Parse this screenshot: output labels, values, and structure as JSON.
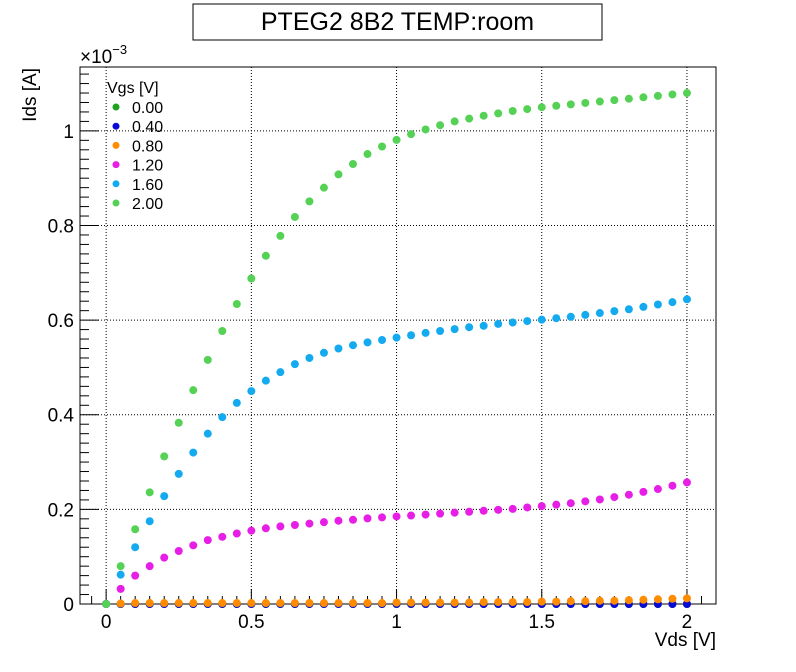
{
  "chart_data": {
    "type": "scatter",
    "title": "PTEG2 8B2 TEMP:room",
    "xlabel": "Vds [V]",
    "ylabel": "Ids [A]",
    "y_exponent_label": "×10",
    "y_exponent_power": "−3",
    "xlim": [
      -0.09,
      2.1
    ],
    "ylim": [
      0,
      1.135
    ],
    "x_ticks": [
      0,
      0.5,
      1,
      1.5,
      2
    ],
    "x_tick_labels": [
      "0",
      "0.5",
      "1",
      "1.5",
      "2"
    ],
    "y_ticks": [
      0,
      0.2,
      0.4,
      0.6,
      0.8,
      1
    ],
    "y_tick_labels": [
      "0",
      "0.2",
      "0.4",
      "0.6",
      "0.8",
      "1"
    ],
    "grid": true,
    "legend_title": "Vgs [V]",
    "legend_position": "top-left",
    "x": [
      0,
      0.05,
      0.1,
      0.15,
      0.2,
      0.25,
      0.3,
      0.35,
      0.4,
      0.45,
      0.5,
      0.55,
      0.6,
      0.65,
      0.7,
      0.75,
      0.8,
      0.85,
      0.9,
      0.95,
      1.0,
      1.05,
      1.1,
      1.15,
      1.2,
      1.25,
      1.3,
      1.35,
      1.4,
      1.45,
      1.5,
      1.55,
      1.6,
      1.65,
      1.7,
      1.75,
      1.8,
      1.85,
      1.9,
      1.95,
      2.0
    ],
    "series": [
      {
        "name": "0.00",
        "color": "#1fa31f",
        "values": [
          0,
          0,
          0,
          0,
          0,
          0,
          0,
          0,
          0,
          0,
          0,
          0,
          0,
          0,
          0,
          0,
          0,
          0,
          0,
          0,
          0,
          0,
          0,
          0,
          0,
          0,
          0,
          0,
          0,
          0,
          0,
          0,
          0,
          0,
          0,
          0,
          0,
          0,
          0,
          0,
          0
        ]
      },
      {
        "name": "0.40",
        "color": "#0a0ad6",
        "values": [
          0,
          0,
          0,
          0,
          0,
          0,
          0,
          0,
          0,
          0,
          0,
          0,
          0,
          0,
          0,
          0,
          0,
          0,
          0,
          0,
          0,
          0,
          0,
          0,
          0,
          0,
          0,
          0,
          0,
          0,
          0,
          0,
          0,
          0,
          0,
          0,
          0,
          0,
          0,
          0,
          0
        ]
      },
      {
        "name": "0.80",
        "color": "#ff8c00",
        "values": [
          0,
          0.001,
          0.002,
          0.002,
          0.002,
          0.002,
          0.002,
          0.002,
          0.002,
          0.002,
          0.002,
          0.002,
          0.002,
          0.002,
          0.002,
          0.002,
          0.002,
          0.002,
          0.002,
          0.002,
          0.003,
          0.003,
          0.003,
          0.003,
          0.003,
          0.003,
          0.004,
          0.004,
          0.004,
          0.004,
          0.005,
          0.005,
          0.006,
          0.006,
          0.007,
          0.007,
          0.008,
          0.009,
          0.01,
          0.011,
          0.012
        ]
      },
      {
        "name": "1.20",
        "color": "#e61ee6",
        "values": [
          0,
          0.032,
          0.06,
          0.08,
          0.098,
          0.112,
          0.124,
          0.135,
          0.142,
          0.149,
          0.155,
          0.16,
          0.164,
          0.167,
          0.17,
          0.173,
          0.176,
          0.178,
          0.181,
          0.183,
          0.185,
          0.187,
          0.189,
          0.191,
          0.193,
          0.195,
          0.197,
          0.199,
          0.201,
          0.204,
          0.207,
          0.21,
          0.213,
          0.217,
          0.221,
          0.226,
          0.231,
          0.237,
          0.243,
          0.25,
          0.257
        ]
      },
      {
        "name": "1.60",
        "color": "#14aaf0",
        "values": [
          0,
          0.062,
          0.12,
          0.175,
          0.228,
          0.275,
          0.32,
          0.36,
          0.395,
          0.425,
          0.45,
          0.472,
          0.49,
          0.507,
          0.52,
          0.531,
          0.54,
          0.547,
          0.553,
          0.558,
          0.563,
          0.568,
          0.573,
          0.577,
          0.581,
          0.585,
          0.588,
          0.592,
          0.595,
          0.598,
          0.601,
          0.604,
          0.607,
          0.611,
          0.615,
          0.619,
          0.623,
          0.628,
          0.633,
          0.638,
          0.644
        ]
      },
      {
        "name": "2.00",
        "color": "#55d255",
        "values": [
          0,
          0.08,
          0.158,
          0.236,
          0.312,
          0.383,
          0.452,
          0.516,
          0.577,
          0.634,
          0.688,
          0.736,
          0.778,
          0.818,
          0.851,
          0.88,
          0.908,
          0.93,
          0.951,
          0.967,
          0.981,
          0.993,
          1.003,
          1.012,
          1.02,
          1.026,
          1.032,
          1.037,
          1.042,
          1.046,
          1.05,
          1.053,
          1.056,
          1.059,
          1.062,
          1.065,
          1.068,
          1.071,
          1.074,
          1.077,
          1.08
        ]
      }
    ]
  }
}
